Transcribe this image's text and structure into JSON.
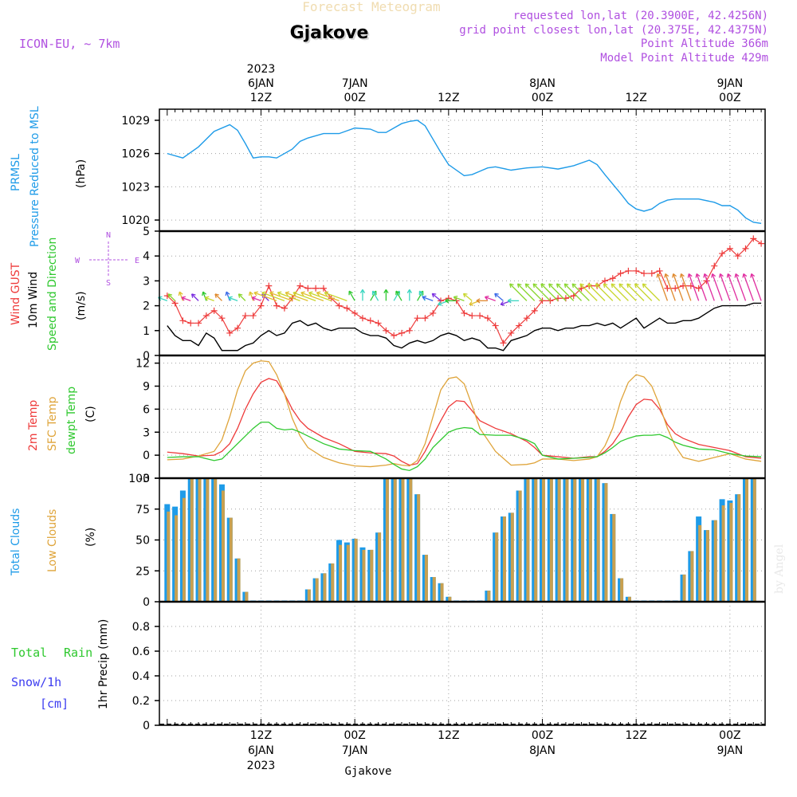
{
  "header": {
    "product": "Forecast Meteogram",
    "station": "Gjakove",
    "model": "ICON-EU, ~ 7km",
    "requested": "requested lon,lat (20.3900E, 42.4256N)",
    "gridpoint": "grid point closest lon,lat (20.375E, 42.4375N)",
    "point_alt": "Point Altitude 366m",
    "model_alt": "Model Point Altitude 429m",
    "footer_station": "Gjakove",
    "credit": "by Angel"
  },
  "colors": {
    "pressure": "#1e9be8",
    "gust": "#ee3a3a",
    "wind": "#000000",
    "temp": "#ee3a3a",
    "sfc": "#dfa43a",
    "dewpt": "#2ec82e",
    "total_clouds": "#1e9be8",
    "low_clouds": "#c8a050",
    "rain": "#2ec82e",
    "snow": "#3c3cf0",
    "purple": "#b050e0"
  },
  "time_axis": {
    "top": [
      {
        "t": 12,
        "lines": [
          "2023",
          "6JAN",
          "12Z"
        ]
      },
      {
        "t": 24,
        "lines": [
          "7JAN",
          "00Z"
        ]
      },
      {
        "t": 36,
        "lines": [
          "12Z"
        ]
      },
      {
        "t": 48,
        "lines": [
          "8JAN",
          "00Z"
        ]
      },
      {
        "t": 60,
        "lines": [
          "12Z"
        ]
      },
      {
        "t": 72,
        "lines": [
          "9JAN",
          "00Z"
        ]
      }
    ],
    "bottom": [
      {
        "t": 12,
        "lines": [
          "12Z",
          "6JAN",
          "2023"
        ]
      },
      {
        "t": 24,
        "lines": [
          "00Z",
          "7JAN"
        ]
      },
      {
        "t": 36,
        "lines": [
          "12Z"
        ]
      },
      {
        "t": 48,
        "lines": [
          "00Z",
          "8JAN"
        ]
      },
      {
        "t": 60,
        "lines": [
          "12Z"
        ]
      },
      {
        "t": 72,
        "lines": [
          "00Z",
          "9JAN"
        ]
      }
    ]
  },
  "compass": {
    "n": "N",
    "s": "S",
    "w": "W",
    "e": "E"
  },
  "panel_labels": {
    "pressure": [
      "PRMSL",
      "Pressure Reduced to MSL",
      "(hPa)"
    ],
    "wind": [
      "Wind GUST",
      "10m Wind",
      "Speed and Direction",
      "(m/s)"
    ],
    "temp": [
      "2m Temp",
      "SFC Temp",
      "dewpt Temp",
      "(C)"
    ],
    "clouds": [
      "Total Clouds",
      "Low Clouds",
      "(%)"
    ],
    "precip": [
      "Total",
      "Rain",
      "Snow/1h",
      "[cm]",
      "1hr Precip (mm)"
    ]
  },
  "chart_data": [
    {
      "type": "line",
      "title": "PRMSL Pressure Reduced to MSL",
      "ylabel": "(hPa)",
      "ylim": [
        1019,
        1030
      ],
      "yticks": [
        1020,
        1023,
        1026,
        1029
      ],
      "x_hours": [
        0,
        2,
        4,
        6,
        8,
        9,
        10,
        11,
        12,
        13,
        14,
        16,
        17,
        18,
        20,
        21,
        22,
        24,
        26,
        27,
        28,
        30,
        31,
        32,
        33,
        34,
        35,
        36,
        38,
        39,
        40,
        41,
        42,
        44,
        45,
        46,
        48,
        50,
        52,
        54,
        55,
        56,
        58,
        59,
        60,
        61,
        62,
        63,
        64,
        65,
        66,
        67,
        68,
        70,
        71,
        72,
        73,
        74,
        75,
        76
      ],
      "series": [
        {
          "name": "PRMSL",
          "values": [
            1026.0,
            1025.6,
            1026.6,
            1028.0,
            1028.6,
            1028.1,
            1026.9,
            1025.6,
            1025.7,
            1025.7,
            1025.6,
            1026.4,
            1027.1,
            1027.4,
            1027.8,
            1027.8,
            1027.8,
            1028.3,
            1028.2,
            1027.9,
            1027.9,
            1028.7,
            1028.9,
            1029.0,
            1028.5,
            1027.3,
            1026.1,
            1025.0,
            1024.0,
            1024.1,
            1024.4,
            1024.7,
            1024.8,
            1024.5,
            1024.6,
            1024.7,
            1024.8,
            1024.6,
            1024.9,
            1025.4,
            1025.0,
            1024.1,
            1022.4,
            1021.5,
            1021.0,
            1020.8,
            1021.0,
            1021.5,
            1021.8,
            1021.9,
            1021.9,
            1021.9,
            1021.9,
            1021.6,
            1021.3,
            1021.3,
            1020.9,
            1020.2,
            1019.8,
            1019.7
          ]
        }
      ]
    },
    {
      "type": "line",
      "title": "Wind GUST / 10m Wind Speed and Direction",
      "ylabel": "(m/s)",
      "ylim": [
        0,
        5
      ],
      "yticks": [
        0,
        1,
        2,
        3,
        4,
        5
      ],
      "x_hours": [
        0,
        1,
        2,
        3,
        4,
        5,
        6,
        7,
        8,
        9,
        10,
        11,
        12,
        13,
        14,
        15,
        16,
        17,
        18,
        19,
        20,
        21,
        22,
        23,
        24,
        25,
        26,
        27,
        28,
        29,
        30,
        31,
        32,
        33,
        34,
        35,
        36,
        37,
        38,
        39,
        40,
        41,
        42,
        43,
        44,
        45,
        46,
        47,
        48,
        49,
        50,
        51,
        52,
        53,
        54,
        55,
        56,
        57,
        58,
        59,
        60,
        61,
        62,
        63,
        64,
        65,
        66,
        67,
        68,
        69,
        70,
        71,
        72,
        73,
        74,
        75,
        76
      ],
      "series": [
        {
          "name": "Wind GUST",
          "values": [
            2.4,
            2.1,
            1.4,
            1.3,
            1.3,
            1.6,
            1.8,
            1.5,
            0.9,
            1.1,
            1.6,
            1.6,
            2.0,
            2.8,
            2.0,
            1.9,
            2.3,
            2.8,
            2.7,
            2.7,
            2.7,
            2.3,
            2.0,
            1.9,
            1.7,
            1.5,
            1.4,
            1.3,
            1.0,
            0.8,
            0.9,
            1.0,
            1.5,
            1.5,
            1.7,
            2.2,
            2.3,
            2.2,
            1.7,
            1.6,
            1.6,
            1.5,
            1.2,
            0.5,
            0.9,
            1.2,
            1.5,
            1.8,
            2.2,
            2.2,
            2.3,
            2.3,
            2.4,
            2.7,
            2.8,
            2.8,
            3.0,
            3.1,
            3.3,
            3.4,
            3.4,
            3.3,
            3.3,
            3.4,
            2.7,
            2.7,
            2.8,
            2.8,
            2.7,
            3.0,
            3.6,
            4.1,
            4.3,
            4.0,
            4.3,
            4.7,
            4.5
          ]
        },
        {
          "name": "10m Wind",
          "values": [
            1.2,
            0.8,
            0.6,
            0.6,
            0.4,
            0.9,
            0.7,
            0.2,
            0.2,
            0.2,
            0.4,
            0.5,
            0.8,
            1.0,
            0.8,
            0.9,
            1.3,
            1.4,
            1.2,
            1.3,
            1.1,
            1.0,
            1.1,
            1.1,
            1.1,
            0.9,
            0.8,
            0.8,
            0.7,
            0.4,
            0.3,
            0.5,
            0.6,
            0.5,
            0.6,
            0.8,
            0.9,
            0.8,
            0.6,
            0.7,
            0.6,
            0.3,
            0.3,
            0.2,
            0.6,
            0.7,
            0.8,
            1.0,
            1.1,
            1.1,
            1.0,
            1.1,
            1.1,
            1.2,
            1.2,
            1.3,
            1.2,
            1.3,
            1.1,
            1.3,
            1.5,
            1.1,
            1.3,
            1.5,
            1.3,
            1.3,
            1.4,
            1.4,
            1.5,
            1.7,
            1.9,
            2.0,
            2.0,
            2.0,
            2.0,
            2.1,
            2.1
          ]
        }
      ]
    },
    {
      "type": "line",
      "title": "2m Temp / SFC Temp / dewpt Temp",
      "ylabel": "(C)",
      "ylim": [
        -3,
        13
      ],
      "yticks": [
        -3,
        0,
        3,
        6,
        9,
        12
      ],
      "x_hours": [
        0,
        2,
        4,
        6,
        7,
        8,
        9,
        10,
        11,
        12,
        13,
        14,
        15,
        16,
        17,
        18,
        20,
        22,
        24,
        26,
        28,
        29,
        30,
        31,
        32,
        33,
        34,
        35,
        36,
        37,
        38,
        39,
        40,
        42,
        44,
        46,
        47,
        48,
        50,
        52,
        54,
        55,
        56,
        57,
        58,
        59,
        60,
        61,
        62,
        63,
        64,
        65,
        66,
        68,
        70,
        72,
        74,
        76
      ],
      "series": [
        {
          "name": "2m Temp",
          "values": [
            0.4,
            0.2,
            -0.1,
            0.0,
            0.5,
            1.5,
            3.5,
            6.0,
            8.0,
            9.5,
            10.0,
            9.7,
            8.0,
            6.0,
            4.5,
            3.5,
            2.3,
            1.5,
            0.5,
            0.3,
            0.2,
            -0.1,
            -0.8,
            -1.3,
            -1.1,
            0.5,
            2.5,
            4.5,
            6.3,
            7.1,
            7.0,
            5.8,
            4.5,
            3.5,
            2.8,
            1.8,
            1.0,
            0.0,
            -0.2,
            -0.4,
            -0.2,
            -0.2,
            0.5,
            1.5,
            3.0,
            5.0,
            6.6,
            7.3,
            7.2,
            6.0,
            4.0,
            2.8,
            2.2,
            1.4,
            1.0,
            0.6,
            -0.2,
            -0.4
          ]
        },
        {
          "name": "SFC Temp",
          "values": [
            -0.6,
            -0.5,
            -0.1,
            0.5,
            2.0,
            5.0,
            8.5,
            11.0,
            12.0,
            12.3,
            12.2,
            10.5,
            8.0,
            4.8,
            2.5,
            1.0,
            -0.3,
            -1.0,
            -1.4,
            -1.5,
            -1.3,
            -1.1,
            -1.3,
            -1.4,
            -0.7,
            1.5,
            5.0,
            8.5,
            10.0,
            10.2,
            9.3,
            6.5,
            3.5,
            0.5,
            -1.3,
            -1.2,
            -1.0,
            -0.5,
            -0.5,
            -0.7,
            -0.5,
            -0.2,
            1.2,
            3.5,
            7.0,
            9.5,
            10.5,
            10.2,
            9.0,
            6.5,
            3.5,
            1.2,
            -0.3,
            -0.8,
            -0.3,
            0.2,
            -0.5,
            -0.8
          ]
        },
        {
          "name": "dewpt Temp",
          "values": [
            -0.3,
            -0.2,
            -0.2,
            -0.7,
            -0.5,
            0.5,
            1.5,
            2.5,
            3.5,
            4.3,
            4.3,
            3.5,
            3.3,
            3.4,
            3.0,
            2.5,
            1.5,
            0.8,
            0.6,
            0.5,
            -0.5,
            -1.2,
            -1.8,
            -2.0,
            -1.5,
            -0.5,
            1.0,
            2.0,
            3.0,
            3.4,
            3.6,
            3.5,
            2.7,
            2.6,
            2.6,
            2.0,
            1.5,
            0.0,
            -0.5,
            -0.4,
            -0.3,
            -0.2,
            0.3,
            1.0,
            1.8,
            2.2,
            2.5,
            2.6,
            2.6,
            2.7,
            2.3,
            1.7,
            1.3,
            0.8,
            0.7,
            0.2,
            -0.1,
            -0.2
          ]
        }
      ]
    },
    {
      "type": "bar",
      "title": "Total Clouds / Low Clouds",
      "ylabel": "(%)",
      "ylim": [
        0,
        100
      ],
      "yticks": [
        0,
        25,
        50,
        75,
        100
      ],
      "x_hours": [
        0,
        1,
        2,
        3,
        4,
        5,
        6,
        7,
        8,
        9,
        10,
        11,
        12,
        13,
        14,
        15,
        16,
        17,
        18,
        19,
        20,
        21,
        22,
        23,
        24,
        25,
        26,
        27,
        28,
        29,
        30,
        31,
        32,
        33,
        34,
        35,
        36,
        37,
        38,
        39,
        40,
        41,
        42,
        43,
        44,
        45,
        46,
        47,
        48,
        49,
        50,
        51,
        52,
        53,
        54,
        55,
        56,
        57,
        58,
        59,
        60,
        61,
        62,
        63,
        64,
        65,
        66,
        67,
        68,
        69,
        70,
        71,
        72,
        73,
        74,
        75
      ],
      "series": [
        {
          "name": "Total Clouds",
          "values": [
            79,
            77,
            90,
            100,
            100,
            100,
            100,
            95,
            68,
            35,
            8,
            0,
            0,
            0,
            0,
            0,
            0,
            0,
            10,
            19,
            23,
            31,
            50,
            48,
            51,
            44,
            42,
            56,
            100,
            100,
            100,
            100,
            87,
            38,
            20,
            15,
            4,
            0,
            0,
            0,
            0,
            9,
            56,
            69,
            72,
            90,
            100,
            100,
            100,
            100,
            100,
            100,
            100,
            100,
            100,
            100,
            96,
            71,
            19,
            4,
            0,
            0,
            0,
            0,
            0,
            0,
            22,
            41,
            69,
            58,
            66,
            83,
            82,
            87,
            100,
            100
          ]
        },
        {
          "name": "Low Clouds",
          "values": [
            73,
            70,
            84,
            100,
            100,
            100,
            100,
            90,
            68,
            35,
            8,
            0,
            0,
            0,
            0,
            0,
            0,
            0,
            10,
            19,
            23,
            31,
            46,
            46,
            51,
            42,
            42,
            56,
            100,
            100,
            100,
            100,
            87,
            38,
            20,
            15,
            4,
            0,
            0,
            0,
            0,
            9,
            56,
            69,
            72,
            90,
            100,
            100,
            100,
            100,
            100,
            100,
            100,
            100,
            100,
            100,
            96,
            71,
            19,
            4,
            0,
            0,
            0,
            0,
            0,
            0,
            22,
            41,
            62,
            58,
            66,
            78,
            80,
            87,
            100,
            100
          ]
        }
      ]
    },
    {
      "type": "bar",
      "title": "1hr Precip (mm)",
      "ylabel": "1hr Precip (mm)",
      "ylim": [
        0,
        1
      ],
      "yticks": [
        0,
        0.2,
        0.4,
        0.6,
        0.8
      ],
      "series": [
        {
          "name": "Total",
          "values": []
        },
        {
          "name": "Rain",
          "values": []
        },
        {
          "name": "Snow/1h",
          "values": []
        }
      ]
    }
  ]
}
